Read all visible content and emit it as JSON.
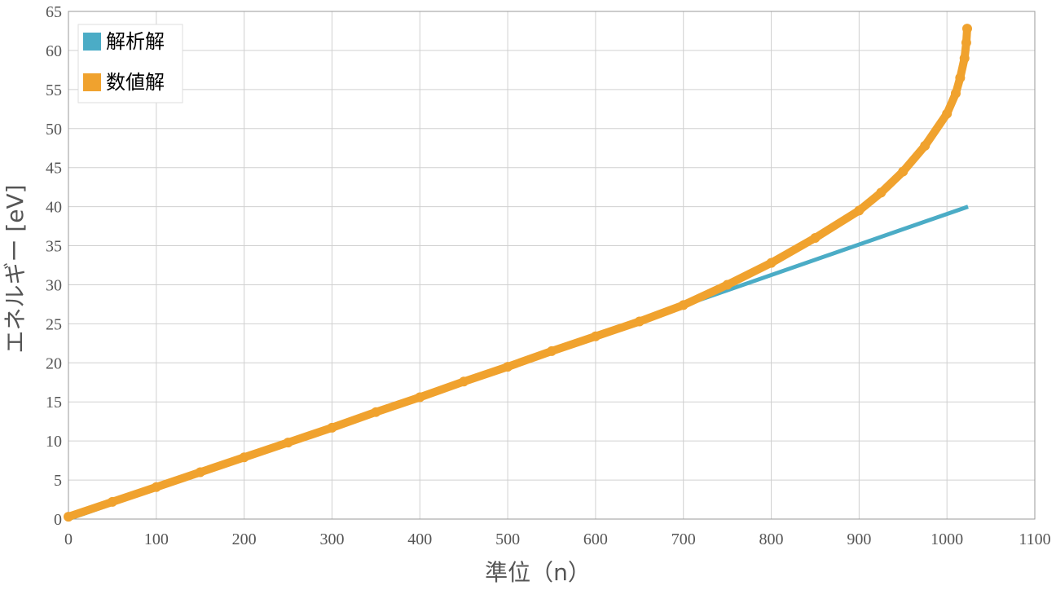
{
  "chart_data": {
    "type": "line",
    "x_label": "準位（n）",
    "y_label": "エネルギー [eV]",
    "xlim": [
      0,
      1100
    ],
    "xticks": [
      0,
      100,
      200,
      300,
      400,
      500,
      600,
      700,
      800,
      900,
      1000,
      1100
    ],
    "ylim": [
      0,
      65
    ],
    "yticks": [
      0,
      5,
      10,
      15,
      20,
      25,
      30,
      35,
      40,
      45,
      50,
      55,
      60,
      65
    ],
    "grid": true,
    "legend": "upper left",
    "series": [
      {
        "name": "解析解",
        "color": "#4bacc6",
        "style": "line",
        "x": [
          0,
          1024
        ],
        "values": [
          0,
          40
        ]
      },
      {
        "name": "数値解",
        "color": "#f0a22e",
        "style": "markers",
        "x": [
          0,
          50,
          100,
          150,
          200,
          250,
          300,
          350,
          400,
          450,
          500,
          550,
          600,
          650,
          700,
          750,
          800,
          850,
          900,
          925,
          950,
          975,
          1000,
          1010,
          1015,
          1020,
          1022,
          1023
        ],
        "values": [
          0.3,
          2.2,
          4.1,
          6.0,
          7.9,
          9.8,
          11.7,
          13.7,
          15.6,
          17.6,
          19.5,
          21.5,
          23.4,
          25.3,
          27.4,
          30.0,
          32.8,
          36.0,
          39.5,
          41.8,
          44.5,
          47.8,
          51.9,
          54.5,
          56.5,
          59.0,
          61.0,
          62.8
        ]
      }
    ]
  }
}
